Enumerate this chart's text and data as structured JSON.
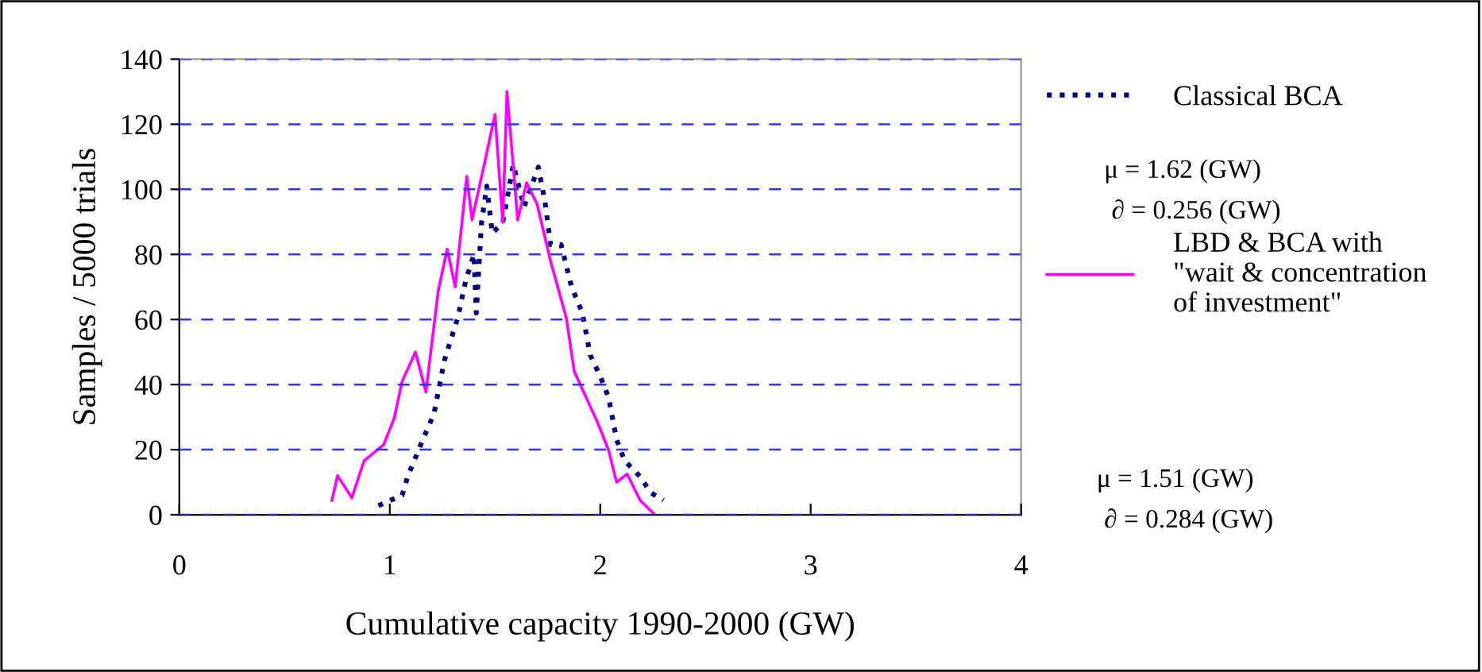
{
  "chart_data": {
    "type": "line",
    "xlabel": "Cumulative capacity 1990-2000 (GW)",
    "ylabel": "Samples / 5000 trials",
    "xlim": [
      0,
      4
    ],
    "xticks": [
      0,
      1,
      2,
      3,
      4
    ],
    "ylim": [
      0,
      140
    ],
    "yticks": [
      0,
      20,
      40,
      60,
      80,
      100,
      120,
      140
    ],
    "grid": "y",
    "legend": "right",
    "marker": "none",
    "series": [
      {
        "name": "Classical BCA",
        "color": "#000080",
        "line_style": "dotted",
        "x": [
          0.946,
          1.059,
          1.085,
          1.147,
          1.21,
          1.26,
          1.323,
          1.361,
          1.4,
          1.411,
          1.436,
          1.461,
          1.487,
          1.537,
          1.587,
          1.638,
          1.706,
          1.738,
          1.764,
          1.814,
          1.864,
          1.915,
          1.953,
          2.0,
          2.04,
          2.078,
          2.116,
          2.19,
          2.24,
          2.3
        ],
        "values": [
          2.8,
          6,
          11.7,
          21.5,
          31,
          47.5,
          60.5,
          72,
          80,
          62,
          89.8,
          101,
          86.5,
          89.8,
          107.6,
          94.6,
          106.8,
          96,
          83,
          83,
          70,
          62,
          49,
          42.6,
          36,
          23,
          16.6,
          11.7,
          6.8,
          4.4
        ]
      },
      {
        "name": "LBD & BCA with\n\"wait & concentration\nof investment\"",
        "color": "#ff00ff",
        "line_style": "solid",
        "x": [
          0.725,
          0.752,
          0.82,
          0.878,
          0.971,
          1.021,
          1.059,
          1.122,
          1.172,
          1.23,
          1.273,
          1.311,
          1.366,
          1.391,
          1.449,
          1.5,
          1.537,
          1.557,
          1.608,
          1.65,
          1.7,
          1.764,
          1.839,
          1.877,
          1.99,
          2.04,
          2.078,
          2.128,
          2.19,
          2.26
        ],
        "values": [
          4.4,
          12,
          5.2,
          16.6,
          21.5,
          29.6,
          41,
          50,
          37.7,
          68.6,
          81.6,
          70,
          104,
          90.6,
          107.6,
          123,
          89.8,
          130,
          90.6,
          102,
          95.5,
          78,
          60.5,
          44,
          28,
          19.8,
          10,
          12.5,
          4.4,
          0
        ]
      }
    ],
    "annotations": [
      "μ = 1.62 (GW)",
      "∂ = 0.256 (GW)",
      "μ = 1.51 (GW)",
      "∂ = 0.284 (GW)"
    ]
  }
}
